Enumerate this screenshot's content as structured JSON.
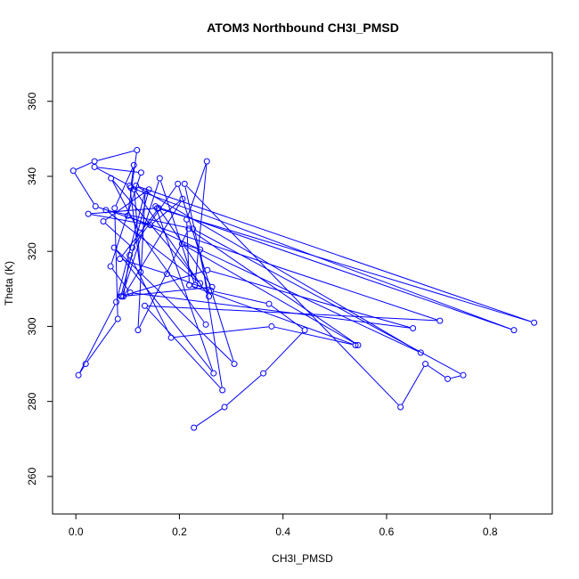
{
  "chart_data": {
    "type": "scatter",
    "title": "ATOM3 Northbound CH3I_PMSD",
    "xlabel": "CH3I_PMSD",
    "ylabel": "Theta (K)",
    "xlim": [
      -0.045,
      0.92
    ],
    "ylim": [
      250,
      373
    ],
    "x_ticks": [
      0.0,
      0.2,
      0.4,
      0.6,
      0.8
    ],
    "x_tick_labels": [
      "0.0",
      "0.2",
      "0.4",
      "0.6",
      "0.8"
    ],
    "y_ticks": [
      260,
      280,
      300,
      320,
      340,
      360
    ],
    "y_tick_labels": [
      "260",
      "280",
      "300",
      "320",
      "340",
      "360"
    ],
    "grid": false,
    "connected": true,
    "marker": "open-circle",
    "color": "#0000ff",
    "series": [
      {
        "x": [
          0.228,
          0.287,
          0.362,
          0.442,
          0.373,
          0.261,
          0.176,
          0.085,
          0.16,
          0.263,
          0.089,
          0.162,
          0.23,
          0.253,
          0.214,
          0.219,
          0.54,
          0.378,
          0.184,
          0.104,
          0.092,
          0.206,
          0.144,
          0.024,
          0.157,
          0.885,
          0.116,
          0.666,
          0.1,
          0.118,
          0.036,
          -0.005,
          0.038,
          0.703,
          0.133,
          0.283,
          0.24,
          0.205,
          0.545,
          0.218,
          0.12,
          0.134,
          0.078,
          0.005,
          0.019,
          0.081,
          0.075,
          0.112,
          0.106,
          0.846,
          0.154,
          0.266,
          0.074,
          0.306,
          0.197,
          0.109,
          0.053,
          0.141,
          0.087,
          0.254,
          0.651,
          0.105,
          0.067,
          0.126,
          0.036,
          0.104,
          0.125,
          0.113,
          0.257,
          0.21,
          0.627,
          0.675,
          0.718,
          0.748,
          0.226,
          0.058,
          0.24,
          0.068,
          0.123,
          0.251
        ],
        "y": [
          273,
          278.5,
          287.5,
          299,
          306,
          309.5,
          314,
          318,
          331.5,
          310.5,
          308,
          339.5,
          311,
          344,
          328.5,
          311,
          295,
          300,
          297,
          319,
          308,
          334,
          327,
          330,
          331.5,
          301,
          337.5,
          293,
          329.5,
          347,
          344,
          341.5,
          332,
          301.5,
          305.5,
          283,
          320.5,
          322,
          295,
          326,
          299,
          336,
          306.5,
          287,
          290,
          302,
          331.5,
          343,
          337,
          299,
          332,
          287.5,
          321,
          290,
          338,
          321,
          328,
          336.5,
          308,
          315,
          299.5,
          309,
          316,
          341,
          342.5,
          337.5,
          314.5,
          336.5,
          308,
          338,
          278.5,
          290,
          286,
          287,
          326,
          331,
          311.5,
          339.5,
          325,
          300.5
        ]
      }
    ]
  }
}
